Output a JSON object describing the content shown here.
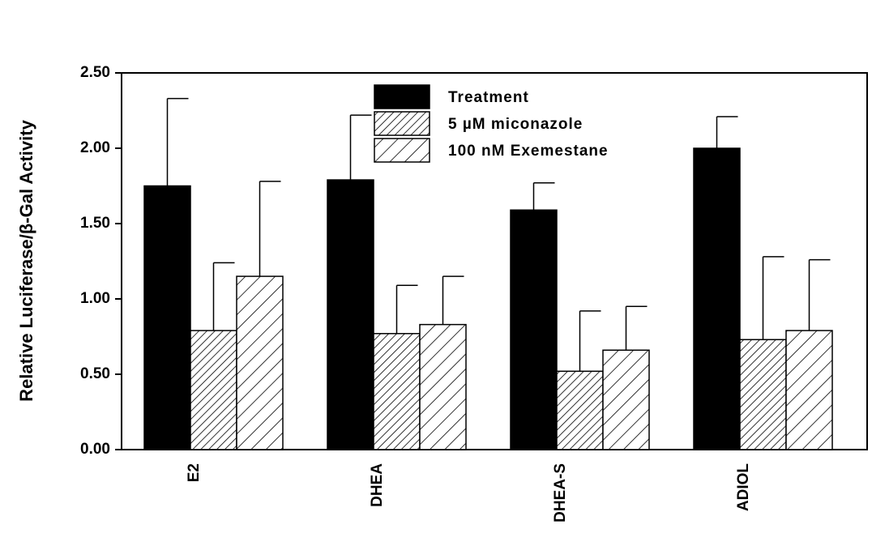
{
  "chart_data": {
    "type": "bar",
    "y_label": "Relative Luciferase/β-Gal Activity",
    "categories": [
      "E2",
      "DHEA",
      "DHEA-S",
      "ADIOL"
    ],
    "series": [
      {
        "name": "Treatment",
        "color": "#000000",
        "hatch": "none",
        "values": [
          1.75,
          1.79,
          1.59,
          2.0
        ],
        "errors": [
          0.58,
          0.43,
          0.18,
          0.21
        ]
      },
      {
        "name": "5 µM miconazole",
        "color": "#000000",
        "hatch": "dense",
        "values": [
          0.79,
          0.77,
          0.52,
          0.73
        ],
        "errors": [
          0.45,
          0.32,
          0.4,
          0.55
        ]
      },
      {
        "name": "100 nM Exemestane",
        "color": "#000000",
        "hatch": "sparse",
        "values": [
          1.15,
          0.83,
          0.66,
          0.79
        ],
        "errors": [
          0.63,
          0.32,
          0.29,
          0.47
        ]
      }
    ],
    "ylim": [
      0,
      2.5
    ],
    "yticks": [
      {
        "value": 0,
        "label": "0.00"
      },
      {
        "value": 0.5,
        "label": "0.50"
      },
      {
        "value": 1,
        "label": "1.00"
      },
      {
        "value": 1.5,
        "label": "1.50"
      },
      {
        "value": 2,
        "label": "2.00"
      },
      {
        "value": 2.5,
        "label": "2.50"
      }
    ],
    "grid": false
  }
}
